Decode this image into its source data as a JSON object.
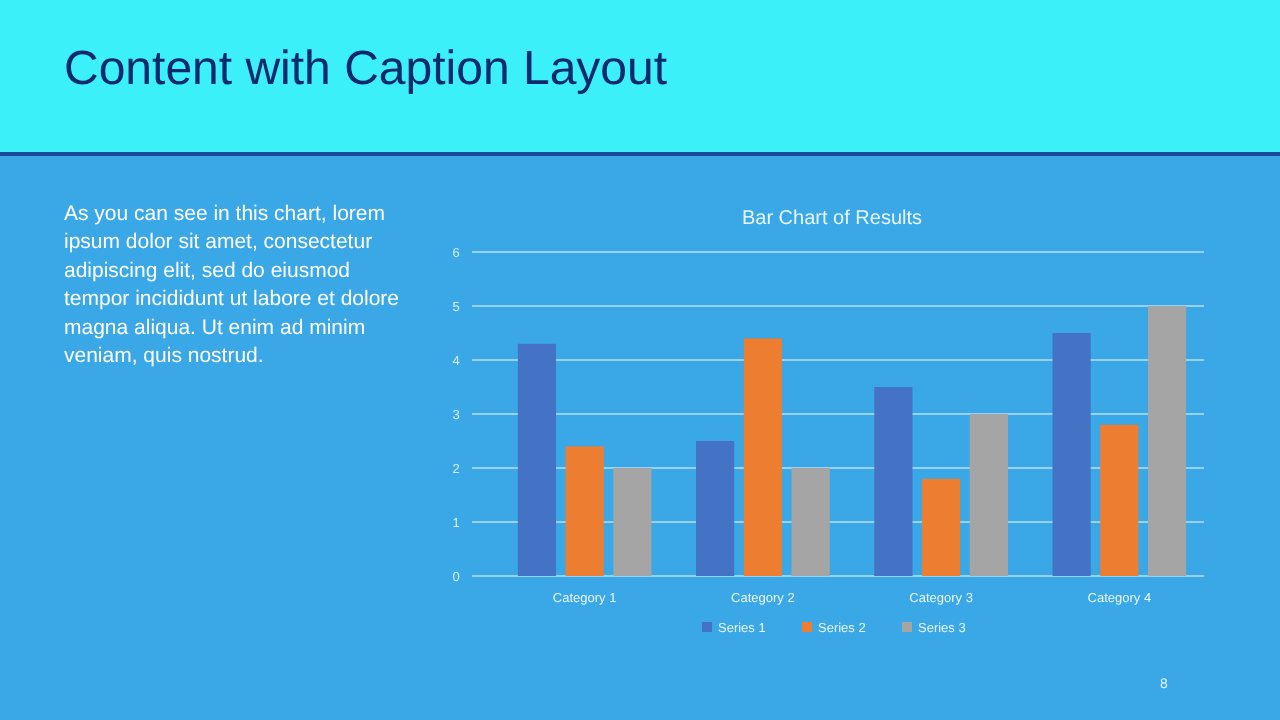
{
  "chart_data": {
    "type": "bar",
    "title": "Bar Chart of Results",
    "annotations": [
      "Content with Caption Layout",
      "As you can see in this chart, lorem ipsum dolor sit amet, consectetur adipiscing elit, sed do eiusmod tempor incididunt ut labore et dolore magna aliqua. Ut enim ad minim veniam, quis nostrud.",
      "8"
    ],
    "categories": [
      "Category 1",
      "Category 2",
      "Category 3",
      "Category 4"
    ],
    "series": [
      {
        "name": "Series 1",
        "color": "#4472c4",
        "values": [
          4.3,
          2.5,
          3.5,
          4.5
        ]
      },
      {
        "name": "Series 2",
        "color": "#ed7d31",
        "values": [
          2.4,
          4.4,
          1.8,
          2.8
        ]
      },
      {
        "name": "Series 3",
        "color": "#a5a5a5",
        "values": [
          2,
          2,
          3,
          5
        ]
      }
    ],
    "ylim": [
      0,
      6
    ],
    "yticks": [
      0,
      1,
      2,
      3,
      4,
      5,
      6
    ],
    "grid": "y",
    "legend": "bottom"
  }
}
